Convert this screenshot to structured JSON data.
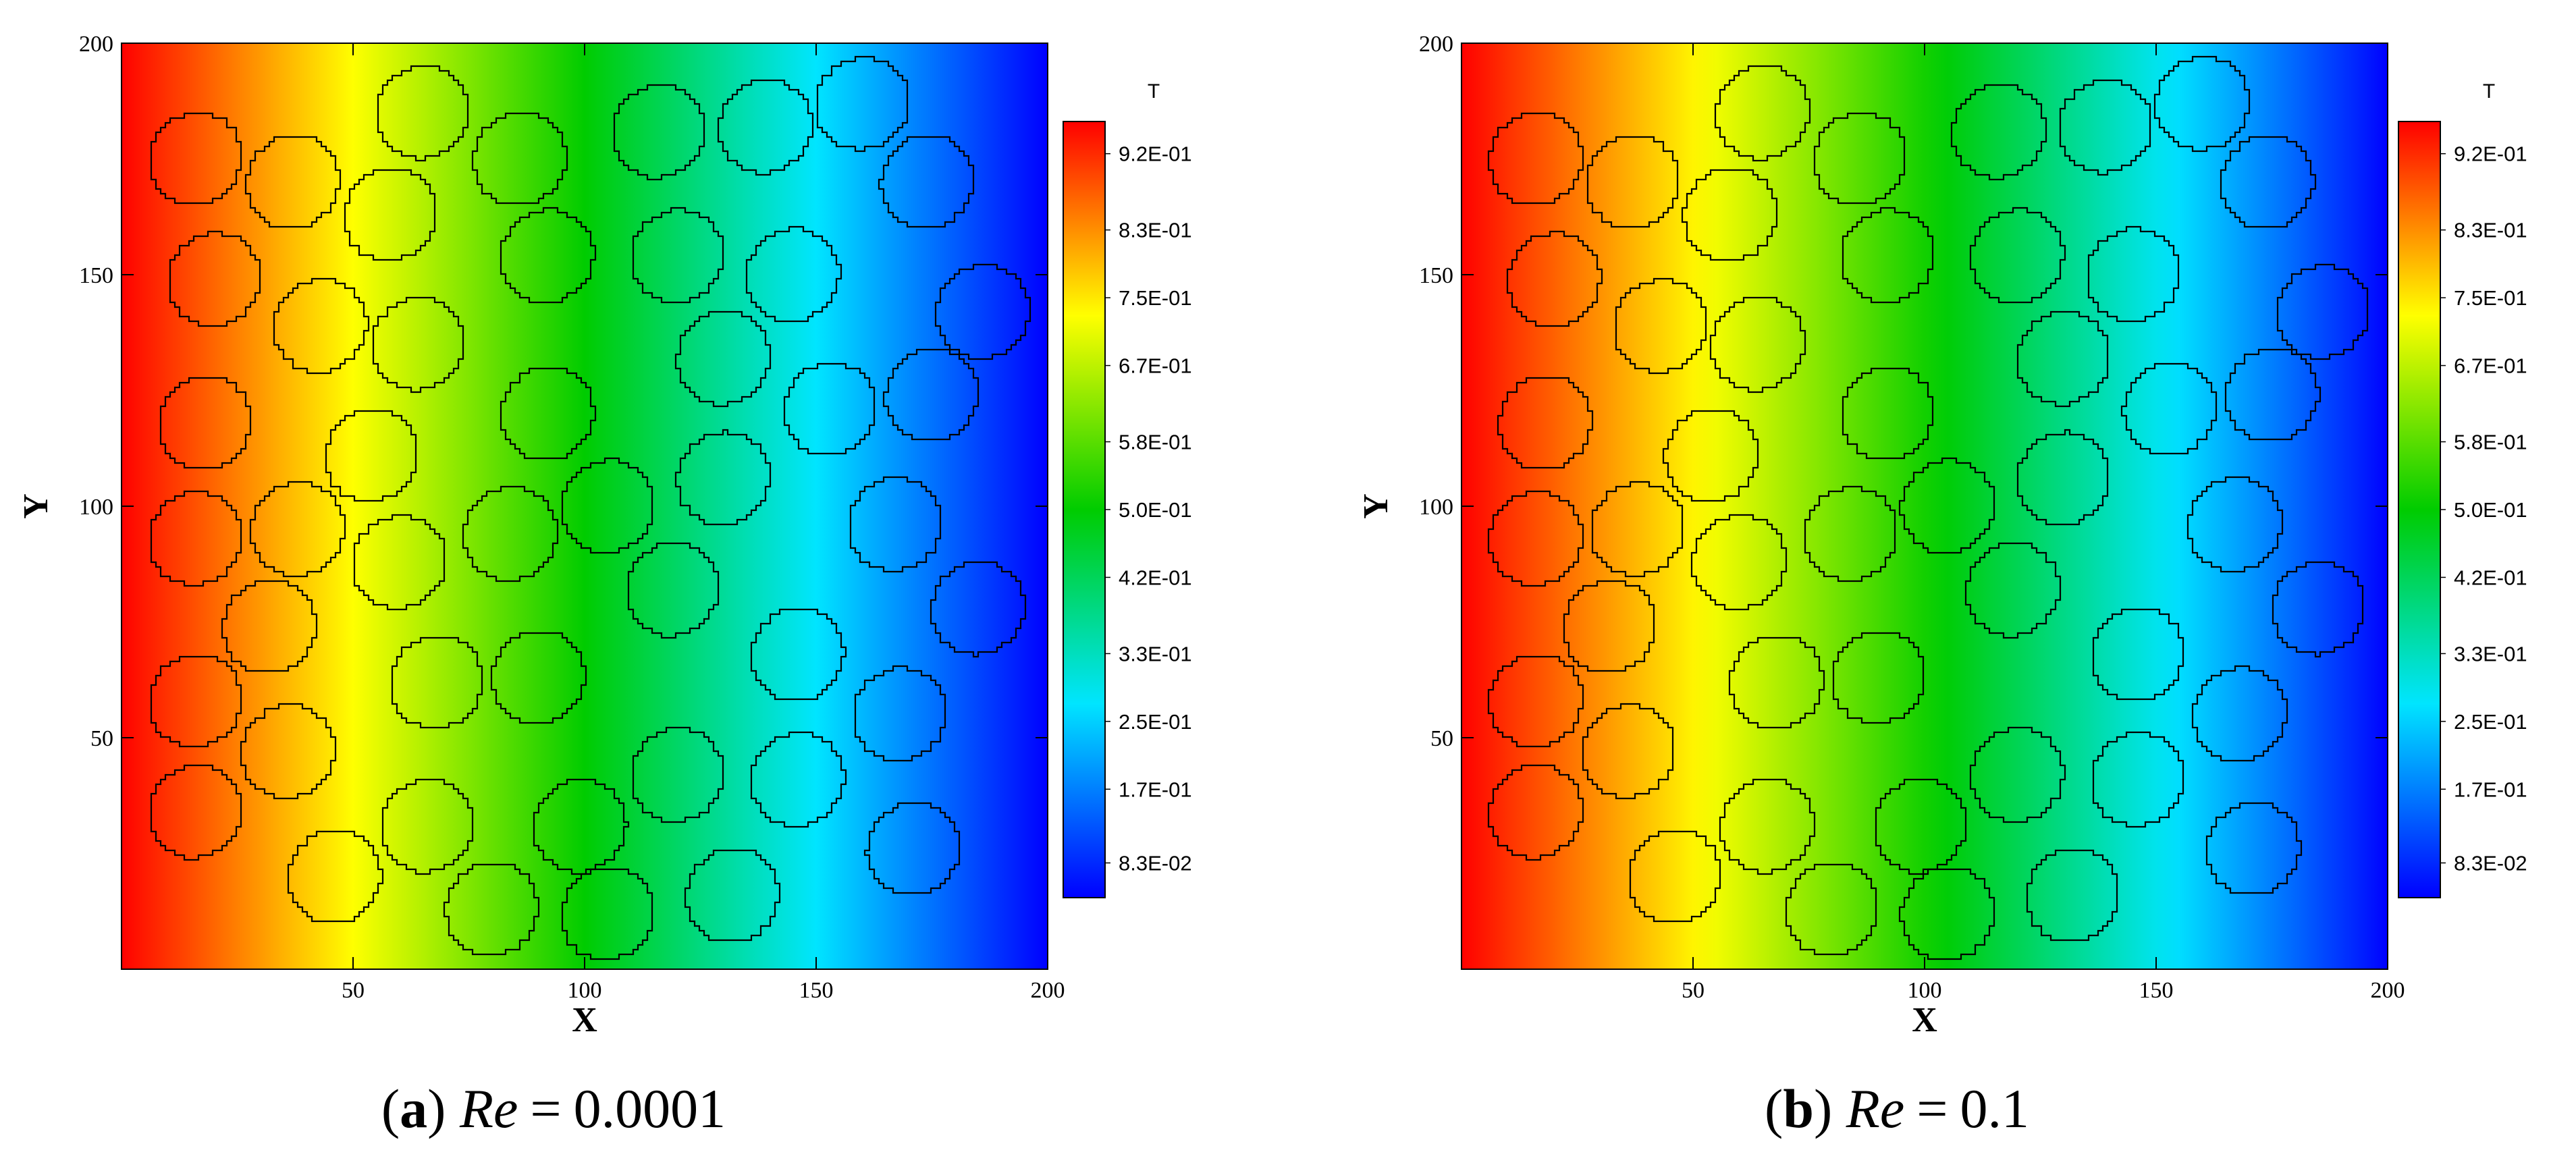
{
  "chart_data": [
    {
      "type": "heatmap",
      "caption": {
        "letter": "a",
        "param": "Re",
        "eq": "=",
        "value": "0.0001"
      },
      "xlabel": "X",
      "ylabel": "Y",
      "xlim": [
        0,
        200
      ],
      "ylim": [
        0,
        200
      ],
      "xticks": [
        50,
        100,
        150,
        200
      ],
      "xtick_labels": [
        "50",
        "100",
        "150",
        "200"
      ],
      "yticks": [
        50,
        100,
        150,
        200
      ],
      "ytick_labels": [
        "50",
        "100",
        "150",
        "200"
      ],
      "colorbar": {
        "title": "T",
        "ticks": [
          0.92,
          0.83,
          0.75,
          0.67,
          0.58,
          0.5,
          0.42,
          0.33,
          0.25,
          0.17,
          0.083
        ],
        "tick_labels": [
          "9.2E-01",
          "8.3E-01",
          "7.5E-01",
          "6.7E-01",
          "5.8E-01",
          "5.0E-01",
          "4.2E-01",
          "3.3E-01",
          "2.5E-01",
          "1.7E-01",
          "8.3E-02"
        ],
        "range": [
          0.042,
          0.958
        ],
        "colors": [
          "#0000ff",
          "#00e5ff",
          "#00cc00",
          "#ffff00",
          "#ff0000"
        ]
      },
      "field": "T(x) decreasing from 1 at X=0 to 0 at X=200 (approximately linear)",
      "obstacles": [
        {
          "x": 16,
          "y": 175,
          "r": 10
        },
        {
          "x": 37,
          "y": 170,
          "r": 10
        },
        {
          "x": 65,
          "y": 185,
          "r": 10
        },
        {
          "x": 86,
          "y": 175,
          "r": 10
        },
        {
          "x": 116,
          "y": 181,
          "r": 10
        },
        {
          "x": 139,
          "y": 182,
          "r": 10
        },
        {
          "x": 160,
          "y": 187,
          "r": 10
        },
        {
          "x": 174,
          "y": 170,
          "r": 10
        },
        {
          "x": 58,
          "y": 163,
          "r": 10
        },
        {
          "x": 20,
          "y": 149,
          "r": 10
        },
        {
          "x": 43,
          "y": 139,
          "r": 10
        },
        {
          "x": 64,
          "y": 135,
          "r": 10
        },
        {
          "x": 92,
          "y": 154,
          "r": 10
        },
        {
          "x": 120,
          "y": 154,
          "r": 10
        },
        {
          "x": 145,
          "y": 150,
          "r": 10
        },
        {
          "x": 186,
          "y": 142,
          "r": 10
        },
        {
          "x": 130,
          "y": 132,
          "r": 10
        },
        {
          "x": 153,
          "y": 121,
          "r": 10
        },
        {
          "x": 175,
          "y": 124,
          "r": 10
        },
        {
          "x": 18,
          "y": 118,
          "r": 10
        },
        {
          "x": 54,
          "y": 111,
          "r": 10
        },
        {
          "x": 92,
          "y": 120,
          "r": 10
        },
        {
          "x": 130,
          "y": 106,
          "r": 10
        },
        {
          "x": 16,
          "y": 93,
          "r": 10
        },
        {
          "x": 38,
          "y": 95,
          "r": 10
        },
        {
          "x": 60,
          "y": 88,
          "r": 10
        },
        {
          "x": 84,
          "y": 94,
          "r": 10
        },
        {
          "x": 105,
          "y": 100,
          "r": 10
        },
        {
          "x": 167,
          "y": 96,
          "r": 10
        },
        {
          "x": 119,
          "y": 82,
          "r": 10
        },
        {
          "x": 185,
          "y": 78,
          "r": 10
        },
        {
          "x": 32,
          "y": 74,
          "r": 10
        },
        {
          "x": 16,
          "y": 58,
          "r": 10
        },
        {
          "x": 68,
          "y": 62,
          "r": 10
        },
        {
          "x": 90,
          "y": 63,
          "r": 10
        },
        {
          "x": 146,
          "y": 68,
          "r": 10
        },
        {
          "x": 36,
          "y": 47,
          "r": 10
        },
        {
          "x": 120,
          "y": 42,
          "r": 10
        },
        {
          "x": 168,
          "y": 55,
          "r": 10
        },
        {
          "x": 16,
          "y": 34,
          "r": 10
        },
        {
          "x": 66,
          "y": 31,
          "r": 10
        },
        {
          "x": 99,
          "y": 31,
          "r": 10
        },
        {
          "x": 146,
          "y": 41,
          "r": 10
        },
        {
          "x": 171,
          "y": 26,
          "r": 10
        },
        {
          "x": 46,
          "y": 20,
          "r": 10
        },
        {
          "x": 80,
          "y": 13,
          "r": 10
        },
        {
          "x": 105,
          "y": 12,
          "r": 10
        },
        {
          "x": 132,
          "y": 16,
          "r": 10
        }
      ]
    },
    {
      "type": "heatmap",
      "caption": {
        "letter": "b",
        "param": "Re",
        "eq": "=",
        "value": "0.1"
      },
      "xlabel": "X",
      "ylabel": "Y",
      "xlim": [
        0,
        200
      ],
      "ylim": [
        0,
        200
      ],
      "xticks": [
        50,
        100,
        150,
        200
      ],
      "xtick_labels": [
        "50",
        "100",
        "150",
        "200"
      ],
      "yticks": [
        50,
        100,
        150,
        200
      ],
      "ytick_labels": [
        "50",
        "100",
        "150",
        "200"
      ],
      "colorbar": {
        "title": "T",
        "ticks": [
          0.92,
          0.83,
          0.75,
          0.67,
          0.58,
          0.5,
          0.42,
          0.33,
          0.25,
          0.17,
          0.083
        ],
        "tick_labels": [
          "9.2E-01",
          "8.3E-01",
          "7.5E-01",
          "6.7E-01",
          "5.8E-01",
          "5.0E-01",
          "4.2E-01",
          "3.3E-01",
          "2.5E-01",
          "1.7E-01",
          "8.3E-02"
        ],
        "range": [
          0.042,
          0.958
        ],
        "colors": [
          "#0000ff",
          "#00e5ff",
          "#00cc00",
          "#ffff00",
          "#ff0000"
        ]
      },
      "field": "T(x) decreasing from 1 at X=0 to 0 at X=200, steeper gradient in the middle",
      "obstacles": [
        {
          "x": 16,
          "y": 175,
          "r": 10
        },
        {
          "x": 37,
          "y": 170,
          "r": 10
        },
        {
          "x": 65,
          "y": 185,
          "r": 10
        },
        {
          "x": 86,
          "y": 175,
          "r": 10
        },
        {
          "x": 116,
          "y": 181,
          "r": 10
        },
        {
          "x": 139,
          "y": 182,
          "r": 10
        },
        {
          "x": 160,
          "y": 187,
          "r": 10
        },
        {
          "x": 174,
          "y": 170,
          "r": 10
        },
        {
          "x": 58,
          "y": 163,
          "r": 10
        },
        {
          "x": 20,
          "y": 149,
          "r": 10
        },
        {
          "x": 43,
          "y": 139,
          "r": 10
        },
        {
          "x": 64,
          "y": 135,
          "r": 10
        },
        {
          "x": 92,
          "y": 154,
          "r": 10
        },
        {
          "x": 120,
          "y": 154,
          "r": 10
        },
        {
          "x": 145,
          "y": 150,
          "r": 10
        },
        {
          "x": 186,
          "y": 142,
          "r": 10
        },
        {
          "x": 130,
          "y": 132,
          "r": 10
        },
        {
          "x": 153,
          "y": 121,
          "r": 10
        },
        {
          "x": 175,
          "y": 124,
          "r": 10
        },
        {
          "x": 18,
          "y": 118,
          "r": 10
        },
        {
          "x": 54,
          "y": 111,
          "r": 10
        },
        {
          "x": 92,
          "y": 120,
          "r": 10
        },
        {
          "x": 130,
          "y": 106,
          "r": 10
        },
        {
          "x": 16,
          "y": 93,
          "r": 10
        },
        {
          "x": 38,
          "y": 95,
          "r": 10
        },
        {
          "x": 60,
          "y": 88,
          "r": 10
        },
        {
          "x": 84,
          "y": 94,
          "r": 10
        },
        {
          "x": 105,
          "y": 100,
          "r": 10
        },
        {
          "x": 167,
          "y": 96,
          "r": 10
        },
        {
          "x": 119,
          "y": 82,
          "r": 10
        },
        {
          "x": 185,
          "y": 78,
          "r": 10
        },
        {
          "x": 32,
          "y": 74,
          "r": 10
        },
        {
          "x": 16,
          "y": 58,
          "r": 10
        },
        {
          "x": 68,
          "y": 62,
          "r": 10
        },
        {
          "x": 90,
          "y": 63,
          "r": 10
        },
        {
          "x": 146,
          "y": 68,
          "r": 10
        },
        {
          "x": 36,
          "y": 47,
          "r": 10
        },
        {
          "x": 120,
          "y": 42,
          "r": 10
        },
        {
          "x": 168,
          "y": 55,
          "r": 10
        },
        {
          "x": 16,
          "y": 34,
          "r": 10
        },
        {
          "x": 66,
          "y": 31,
          "r": 10
        },
        {
          "x": 99,
          "y": 31,
          "r": 10
        },
        {
          "x": 146,
          "y": 41,
          "r": 10
        },
        {
          "x": 171,
          "y": 26,
          "r": 10
        },
        {
          "x": 46,
          "y": 20,
          "r": 10
        },
        {
          "x": 80,
          "y": 13,
          "r": 10
        },
        {
          "x": 105,
          "y": 12,
          "r": 10
        },
        {
          "x": 132,
          "y": 16,
          "r": 10
        }
      ]
    }
  ]
}
